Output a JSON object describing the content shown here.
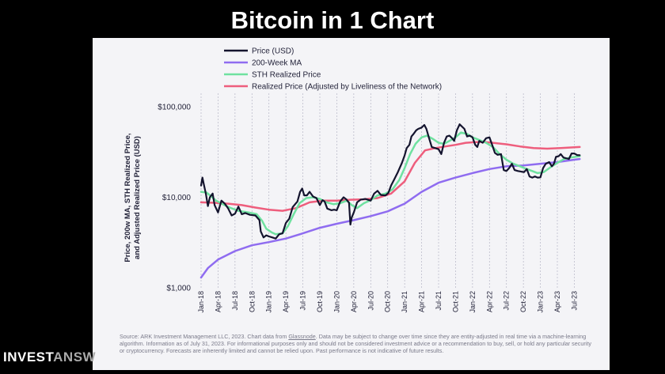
{
  "headline": "Bitcoin in 1 Chart",
  "brand": {
    "part1": "INVEST",
    "part2": "ANSW"
  },
  "footnote": {
    "before_link": "Source: ARK Investment Management LLC, 2023. Chart data from ",
    "link": "Glassnode",
    "after_link": ". Data may be subject to change over time since they are entity-adjusted in real time via a machine-learning algorithm. Information as of July 31, 2023. For informational purposes only and should not be considered investment advice or a recommendation to buy, sell, or hold any particular security or cryptocurrency. Forecasts are inherently limited and cannot be relied upon. Past performance is not indicative of future results."
  },
  "colors": {
    "price": "#14142e",
    "ma200": "#8f6cf0",
    "sth": "#6fe1a0",
    "realized": "#ee5e7d",
    "grid": "#b5b5c5",
    "panel": "#f4f4f7",
    "background": "#000000"
  },
  "chart_data": {
    "type": "line",
    "title": "",
    "xlabel": "",
    "ylabel": "Price, 200w MA, STH Realized Price, and Adjusted Realized Price (USD)",
    "ylabel_lines": [
      "Price, 200w MA, STH Realized Price,",
      "and Adjusted Realized Price (USD)"
    ],
    "y_scale": "log",
    "ylim": [
      1000,
      120000
    ],
    "yticks": [
      {
        "value": 100000,
        "label": "$100,000"
      },
      {
        "value": 10000,
        "label": "$10,000"
      },
      {
        "value": 1000,
        "label": "$1,000"
      }
    ],
    "xlim": [
      2018.0,
      2023.6
    ],
    "xticks": [
      {
        "value": 2018.0,
        "label": "Jan-18"
      },
      {
        "value": 2018.25,
        "label": "Apr-18"
      },
      {
        "value": 2018.5,
        "label": "Jul-18"
      },
      {
        "value": 2018.75,
        "label": "Oct-18"
      },
      {
        "value": 2019.0,
        "label": "Jan-19"
      },
      {
        "value": 2019.25,
        "label": "Apr-19"
      },
      {
        "value": 2019.5,
        "label": "Jul-19"
      },
      {
        "value": 2019.75,
        "label": "Oct-19"
      },
      {
        "value": 2020.0,
        "label": "Jan-20"
      },
      {
        "value": 2020.25,
        "label": "Apr-20"
      },
      {
        "value": 2020.5,
        "label": "Jul-20"
      },
      {
        "value": 2020.75,
        "label": "Oct-20"
      },
      {
        "value": 2021.0,
        "label": "Jan-21"
      },
      {
        "value": 2021.25,
        "label": "Apr-21"
      },
      {
        "value": 2021.5,
        "label": "Jul-21"
      },
      {
        "value": 2021.75,
        "label": "Oct-21"
      },
      {
        "value": 2022.0,
        "label": "Jan-22"
      },
      {
        "value": 2022.25,
        "label": "Apr-22"
      },
      {
        "value": 2022.5,
        "label": "Jul-22"
      },
      {
        "value": 2022.75,
        "label": "Oct-22"
      },
      {
        "value": 2023.0,
        "label": "Jan-23"
      },
      {
        "value": 2023.25,
        "label": "Apr-23"
      },
      {
        "value": 2023.5,
        "label": "Jul-23"
      }
    ],
    "grid_x": true,
    "legend_position": "top-left",
    "series": [
      {
        "name": "Price (USD)",
        "color_key": "price",
        "width": 2.2,
        "points": [
          [
            2018.0,
            13500
          ],
          [
            2018.02,
            16500
          ],
          [
            2018.04,
            14000
          ],
          [
            2018.07,
            11000
          ],
          [
            2018.1,
            8000
          ],
          [
            2018.13,
            10000
          ],
          [
            2018.17,
            11000
          ],
          [
            2018.2,
            8200
          ],
          [
            2018.25,
            6800
          ],
          [
            2018.3,
            9200
          ],
          [
            2018.35,
            8500
          ],
          [
            2018.4,
            7500
          ],
          [
            2018.45,
            6300
          ],
          [
            2018.5,
            6600
          ],
          [
            2018.55,
            7900
          ],
          [
            2018.6,
            6500
          ],
          [
            2018.65,
            6700
          ],
          [
            2018.72,
            6400
          ],
          [
            2018.8,
            6300
          ],
          [
            2018.86,
            5600
          ],
          [
            2018.88,
            4200
          ],
          [
            2018.92,
            3600
          ],
          [
            2018.96,
            3800
          ],
          [
            2019.0,
            3700
          ],
          [
            2019.05,
            3600
          ],
          [
            2019.1,
            3500
          ],
          [
            2019.15,
            3900
          ],
          [
            2019.2,
            4000
          ],
          [
            2019.25,
            5200
          ],
          [
            2019.3,
            5800
          ],
          [
            2019.35,
            7800
          ],
          [
            2019.42,
            9000
          ],
          [
            2019.46,
            11500
          ],
          [
            2019.49,
            12500
          ],
          [
            2019.52,
            10500
          ],
          [
            2019.56,
            10500
          ],
          [
            2019.6,
            11500
          ],
          [
            2019.65,
            10200
          ],
          [
            2019.7,
            9800
          ],
          [
            2019.75,
            8200
          ],
          [
            2019.79,
            9300
          ],
          [
            2019.82,
            9000
          ],
          [
            2019.86,
            7500
          ],
          [
            2019.92,
            7200
          ],
          [
            2019.96,
            7300
          ],
          [
            2020.0,
            7200
          ],
          [
            2020.05,
            9000
          ],
          [
            2020.1,
            10000
          ],
          [
            2020.14,
            9500
          ],
          [
            2020.18,
            8700
          ],
          [
            2020.2,
            5000
          ],
          [
            2020.22,
            6000
          ],
          [
            2020.25,
            6800
          ],
          [
            2020.3,
            8800
          ],
          [
            2020.35,
            9400
          ],
          [
            2020.42,
            9600
          ],
          [
            2020.5,
            9200
          ],
          [
            2020.55,
            11000
          ],
          [
            2020.6,
            11800
          ],
          [
            2020.65,
            10600
          ],
          [
            2020.72,
            10500
          ],
          [
            2020.76,
            11200
          ],
          [
            2020.8,
            13500
          ],
          [
            2020.85,
            16000
          ],
          [
            2020.9,
            19000
          ],
          [
            2020.96,
            24000
          ],
          [
            2021.0,
            29000
          ],
          [
            2021.03,
            35000
          ],
          [
            2021.07,
            38000
          ],
          [
            2021.1,
            47000
          ],
          [
            2021.13,
            50000
          ],
          [
            2021.17,
            55000
          ],
          [
            2021.2,
            57000
          ],
          [
            2021.25,
            59000
          ],
          [
            2021.29,
            63000
          ],
          [
            2021.32,
            57000
          ],
          [
            2021.36,
            45000
          ],
          [
            2021.4,
            36000
          ],
          [
            2021.45,
            35000
          ],
          [
            2021.5,
            34000
          ],
          [
            2021.54,
            30000
          ],
          [
            2021.58,
            40000
          ],
          [
            2021.62,
            47000
          ],
          [
            2021.66,
            48000
          ],
          [
            2021.7,
            45000
          ],
          [
            2021.73,
            42000
          ],
          [
            2021.77,
            55000
          ],
          [
            2021.81,
            64000
          ],
          [
            2021.85,
            60000
          ],
          [
            2021.88,
            57000
          ],
          [
            2021.92,
            47000
          ],
          [
            2021.96,
            48000
          ],
          [
            2022.0,
            46000
          ],
          [
            2022.04,
            38000
          ],
          [
            2022.07,
            36000
          ],
          [
            2022.1,
            42000
          ],
          [
            2022.15,
            40000
          ],
          [
            2022.2,
            45000
          ],
          [
            2022.25,
            46000
          ],
          [
            2022.29,
            38000
          ],
          [
            2022.33,
            31000
          ],
          [
            2022.37,
            29500
          ],
          [
            2022.42,
            30000
          ],
          [
            2022.46,
            20000
          ],
          [
            2022.5,
            19500
          ],
          [
            2022.54,
            21000
          ],
          [
            2022.58,
            23500
          ],
          [
            2022.62,
            20000
          ],
          [
            2022.67,
            19500
          ],
          [
            2022.72,
            19200
          ],
          [
            2022.76,
            19000
          ],
          [
            2022.8,
            20500
          ],
          [
            2022.84,
            17000
          ],
          [
            2022.88,
            16500
          ],
          [
            2022.92,
            17000
          ],
          [
            2022.96,
            16500
          ],
          [
            2023.0,
            16600
          ],
          [
            2023.04,
            21000
          ],
          [
            2023.08,
            23500
          ],
          [
            2023.13,
            24500
          ],
          [
            2023.17,
            22000
          ],
          [
            2023.2,
            23500
          ],
          [
            2023.23,
            28000
          ],
          [
            2023.27,
            28500
          ],
          [
            2023.3,
            30000
          ],
          [
            2023.34,
            27500
          ],
          [
            2023.38,
            27000
          ],
          [
            2023.42,
            26500
          ],
          [
            2023.46,
            30500
          ],
          [
            2023.5,
            30500
          ],
          [
            2023.54,
            29300
          ],
          [
            2023.58,
            29200
          ]
        ]
      },
      {
        "name": "200-Week MA",
        "color_key": "ma200",
        "width": 2.5,
        "points": [
          [
            2018.0,
            1300
          ],
          [
            2018.1,
            1650
          ],
          [
            2018.25,
            2050
          ],
          [
            2018.5,
            2550
          ],
          [
            2018.75,
            2950
          ],
          [
            2019.0,
            3200
          ],
          [
            2019.25,
            3500
          ],
          [
            2019.5,
            4000
          ],
          [
            2019.75,
            4600
          ],
          [
            2020.0,
            5100
          ],
          [
            2020.25,
            5600
          ],
          [
            2020.5,
            6200
          ],
          [
            2020.75,
            7000
          ],
          [
            2021.0,
            8500
          ],
          [
            2021.25,
            11500
          ],
          [
            2021.5,
            14500
          ],
          [
            2021.75,
            16500
          ],
          [
            2022.0,
            18500
          ],
          [
            2022.25,
            20500
          ],
          [
            2022.5,
            22000
          ],
          [
            2022.75,
            22500
          ],
          [
            2023.0,
            23500
          ],
          [
            2023.25,
            24500
          ],
          [
            2023.5,
            26000
          ],
          [
            2023.58,
            26500
          ]
        ]
      },
      {
        "name": "STH Realized Price",
        "color_key": "sth",
        "width": 2.5,
        "points": [
          [
            2018.0,
            11500
          ],
          [
            2018.08,
            11300
          ],
          [
            2018.15,
            10200
          ],
          [
            2018.22,
            9200
          ],
          [
            2018.32,
            8400
          ],
          [
            2018.42,
            7700
          ],
          [
            2018.55,
            7100
          ],
          [
            2018.7,
            6800
          ],
          [
            2018.82,
            6500
          ],
          [
            2018.9,
            5500
          ],
          [
            2018.96,
            4500
          ],
          [
            2019.04,
            4100
          ],
          [
            2019.1,
            3900
          ],
          [
            2019.2,
            4000
          ],
          [
            2019.28,
            4800
          ],
          [
            2019.36,
            6400
          ],
          [
            2019.45,
            8600
          ],
          [
            2019.55,
            9800
          ],
          [
            2019.65,
            10000
          ],
          [
            2019.75,
            9600
          ],
          [
            2019.85,
            8800
          ],
          [
            2019.95,
            8400
          ],
          [
            2020.05,
            8600
          ],
          [
            2020.15,
            9200
          ],
          [
            2020.22,
            8200
          ],
          [
            2020.3,
            7600
          ],
          [
            2020.4,
            8600
          ],
          [
            2020.5,
            9300
          ],
          [
            2020.6,
            10500
          ],
          [
            2020.72,
            11000
          ],
          [
            2020.82,
            12200
          ],
          [
            2020.92,
            15500
          ],
          [
            2021.0,
            21000
          ],
          [
            2021.08,
            30000
          ],
          [
            2021.16,
            39000
          ],
          [
            2021.25,
            46000
          ],
          [
            2021.33,
            48000
          ],
          [
            2021.42,
            44000
          ],
          [
            2021.5,
            40000
          ],
          [
            2021.58,
            39000
          ],
          [
            2021.66,
            42000
          ],
          [
            2021.75,
            46000
          ],
          [
            2021.83,
            52000
          ],
          [
            2021.92,
            50000
          ],
          [
            2022.0,
            46000
          ],
          [
            2022.1,
            43000
          ],
          [
            2022.2,
            40000
          ],
          [
            2022.3,
            36000
          ],
          [
            2022.4,
            30000
          ],
          [
            2022.5,
            26000
          ],
          [
            2022.6,
            23500
          ],
          [
            2022.7,
            22000
          ],
          [
            2022.8,
            20500
          ],
          [
            2022.88,
            19500
          ],
          [
            2022.96,
            18500
          ],
          [
            2023.05,
            19000
          ],
          [
            2023.15,
            21500
          ],
          [
            2023.25,
            24000
          ],
          [
            2023.35,
            26500
          ],
          [
            2023.45,
            27500
          ],
          [
            2023.58,
            28500
          ]
        ]
      },
      {
        "name": "Realized Price (Adjusted by Liveliness of the Network)",
        "color_key": "realized",
        "width": 2.5,
        "points": [
          [
            2018.0,
            8800
          ],
          [
            2018.2,
            8700
          ],
          [
            2018.4,
            8500
          ],
          [
            2018.6,
            8200
          ],
          [
            2018.8,
            7700
          ],
          [
            2019.0,
            7300
          ],
          [
            2019.2,
            7100
          ],
          [
            2019.4,
            7600
          ],
          [
            2019.6,
            8800
          ],
          [
            2019.8,
            9200
          ],
          [
            2020.0,
            9200
          ],
          [
            2020.2,
            9400
          ],
          [
            2020.4,
            9500
          ],
          [
            2020.6,
            9800
          ],
          [
            2020.8,
            11000
          ],
          [
            2021.0,
            15000
          ],
          [
            2021.15,
            24000
          ],
          [
            2021.3,
            33000
          ],
          [
            2021.45,
            35000
          ],
          [
            2021.6,
            36500
          ],
          [
            2021.75,
            38000
          ],
          [
            2021.9,
            40000
          ],
          [
            2022.0,
            40500
          ],
          [
            2022.15,
            41000
          ],
          [
            2022.3,
            40000
          ],
          [
            2022.5,
            38500
          ],
          [
            2022.7,
            36500
          ],
          [
            2022.9,
            35000
          ],
          [
            2023.1,
            34500
          ],
          [
            2023.3,
            35000
          ],
          [
            2023.58,
            36000
          ]
        ]
      }
    ]
  }
}
